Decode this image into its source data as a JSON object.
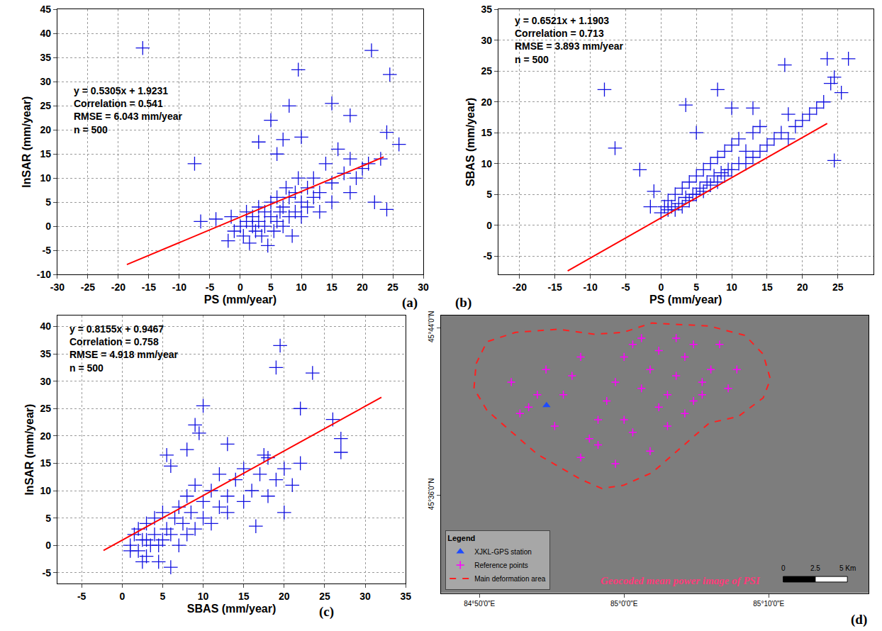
{
  "chart_data": [
    {
      "type": "scatter",
      "panel_label": "(a)",
      "x_label": "PS (mm/year)",
      "y_label": "InSAR (mm/year)",
      "annotation": [
        "y = 0.5305x + 1.9231",
        "Correlation = 0.541",
        "RMSE = 6.043 mm/year",
        "n = 500"
      ],
      "color": "#1010e0",
      "marker": "cross",
      "grid": true,
      "xlim": [
        -30,
        30
      ],
      "xticks": [
        -30,
        -25,
        -20,
        -15,
        -10,
        -5,
        0,
        5,
        10,
        15,
        20,
        25,
        30
      ],
      "ylim": [
        -10,
        45
      ],
      "yticks": [
        -10,
        -5,
        0,
        5,
        10,
        15,
        20,
        25,
        30,
        35,
        40,
        45
      ],
      "x": [
        -16,
        -7.5,
        -6.5,
        -4,
        -2,
        -1.5,
        -1,
        0,
        0.5,
        1,
        1,
        1.5,
        2,
        2,
        2.5,
        3,
        3,
        3.5,
        4,
        4,
        4.5,
        5,
        5,
        5.5,
        6,
        6,
        6.5,
        7,
        7,
        7.5,
        8,
        8,
        8.5,
        9,
        9,
        9.5,
        10,
        10,
        11,
        11,
        12,
        12,
        13,
        13,
        14,
        15,
        15,
        16,
        17,
        18,
        18,
        19,
        20,
        21,
        21.5,
        22,
        23,
        24,
        24,
        24.5,
        26,
        9.5,
        8,
        15,
        5,
        18,
        10,
        7,
        3,
        6
      ],
      "values": [
        37,
        13,
        1,
        1.5,
        -3,
        2,
        -1,
        0,
        -2,
        1,
        3,
        -3.5,
        0,
        2,
        -1,
        1,
        4,
        -2,
        0,
        3,
        -4,
        2,
        5,
        -1,
        1,
        6,
        3,
        0,
        4,
        8,
        2,
        6,
        -2,
        3,
        7,
        10,
        2,
        5,
        4,
        8,
        6,
        10,
        3,
        7,
        13,
        5,
        9,
        16,
        11,
        7,
        14,
        10,
        12,
        13,
        36.5,
        5,
        14,
        19.5,
        3.5,
        31.5,
        17,
        32.5,
        25,
        25.5,
        22,
        23,
        18.5,
        18,
        17.5,
        15
      ],
      "fit": {
        "slope": 0.5305,
        "intercept": 1.9231,
        "x_range": [
          -18.6,
          23.5
        ],
        "color": "#ff0000"
      }
    },
    {
      "type": "scatter",
      "panel_label": "(b)",
      "x_label": "PS (mm/year)",
      "y_label": "SBAS (mm/year)",
      "annotation": [
        "y = 0.6521x + 1.1903",
        "Correlation = 0.713",
        "RMSE = 3.893 mm/year",
        "n = 500"
      ],
      "color": "#1010e0",
      "marker": "cross",
      "grid": true,
      "xlim": [
        -23,
        30
      ],
      "xticks": [
        -20,
        -15,
        -10,
        -5,
        0,
        5,
        10,
        15,
        20,
        25
      ],
      "ylim": [
        -8,
        35
      ],
      "yticks": [
        -5,
        0,
        5,
        10,
        15,
        20,
        25,
        30,
        35
      ],
      "x": [
        -8,
        -6.5,
        -3,
        -1,
        -1.5,
        0,
        0.5,
        1,
        1,
        1.5,
        2,
        2,
        2.5,
        3,
        3,
        3.5,
        4,
        4,
        4.5,
        5,
        5,
        5.5,
        6,
        6,
        6.5,
        7,
        7,
        7.5,
        8,
        8,
        8.5,
        9,
        9,
        9.5,
        10,
        10,
        11,
        11,
        12,
        12,
        13,
        13,
        14,
        14,
        15,
        16,
        17,
        18,
        18,
        19,
        20,
        21,
        22,
        23,
        23.5,
        24,
        24.5,
        24.5,
        25.5,
        26.5,
        17.5,
        3.5,
        8,
        5,
        10,
        13
      ],
      "values": [
        22,
        12.5,
        9,
        5.5,
        3,
        2,
        3,
        2.5,
        4,
        3,
        2.5,
        5,
        3.5,
        3,
        6,
        4.5,
        4,
        7,
        5,
        5,
        8,
        6,
        5.5,
        9,
        7,
        6.5,
        10,
        8,
        7,
        11,
        8.5,
        8,
        12,
        9,
        9,
        13,
        10,
        14,
        10,
        12,
        11,
        15,
        12,
        16,
        13,
        14,
        15,
        14,
        18,
        16,
        17,
        18,
        19,
        20,
        27,
        23,
        24,
        10.5,
        21.5,
        27,
        26,
        19.5,
        22,
        15,
        19,
        19
      ],
      "fit": {
        "slope": 0.6521,
        "intercept": 1.1903,
        "x_range": [
          -13.2,
          23.5
        ],
        "color": "#ff0000"
      }
    },
    {
      "type": "scatter",
      "panel_label": "(c)",
      "x_label": "SBAS (mm/year)",
      "y_label": "InSAR (mm/year)",
      "annotation": [
        "y = 0.8155x + 0.9467",
        "Correlation = 0.758",
        "RMSE = 4.918 mm/year",
        "n = 500"
      ],
      "color": "#1010e0",
      "marker": "cross",
      "grid": true,
      "xlim": [
        -8,
        35
      ],
      "xticks": [
        -5,
        0,
        5,
        10,
        15,
        20,
        25,
        30,
        35
      ],
      "ylim": [
        -7,
        42
      ],
      "yticks": [
        -5,
        0,
        5,
        10,
        15,
        20,
        25,
        30,
        35,
        40
      ],
      "x": [
        1,
        1.5,
        2,
        2,
        2.5,
        3,
        3,
        3.5,
        4,
        4,
        4.5,
        5,
        5,
        5.5,
        6,
        6,
        6.5,
        7,
        7,
        7.5,
        8,
        8,
        8.5,
        9,
        9,
        10,
        10,
        11,
        11,
        12,
        12,
        13,
        13,
        14,
        15,
        15,
        16,
        17,
        18,
        18,
        19,
        20,
        21,
        22,
        1,
        2.5,
        3,
        4.5,
        19.5,
        19,
        23.5,
        10,
        22,
        26,
        27,
        27,
        9,
        9.5,
        8,
        13,
        5.5,
        6,
        17.5,
        20,
        16.5
      ],
      "values": [
        0,
        2,
        -1,
        3,
        1,
        -2,
        4,
        0,
        2,
        5,
        -3,
        1,
        6,
        3,
        -4,
        2,
        5,
        0,
        7,
        4,
        2,
        9,
        6,
        3,
        11,
        5,
        8,
        4,
        10,
        7,
        13,
        6,
        9,
        12,
        8,
        14,
        10,
        13,
        9,
        16,
        12,
        14,
        11,
        15,
        -1,
        -3,
        1,
        0,
        36.5,
        32.5,
        31.5,
        25.5,
        25,
        23,
        19.5,
        17,
        22,
        20.5,
        17.5,
        18.5,
        16.5,
        14.5,
        16.5,
        6,
        3.5
      ],
      "fit": {
        "slope": 0.8155,
        "intercept": 0.9467,
        "x_range": [
          -2.3,
          32
        ],
        "color": "#ff0000"
      }
    },
    {
      "type": "map",
      "panel_label": "(d)",
      "title": "Geocoded mean power image of PSI",
      "color": "#7d7d7d",
      "xlim": [
        84.789,
        85.282
      ],
      "xticks": [
        {
          "value": 84.8333,
          "label": "84°50'0\"E"
        },
        {
          "value": 85.0,
          "label": "85°0'0\"E"
        },
        {
          "value": 85.1667,
          "label": "85°10'0\"E"
        }
      ],
      "ylim": [
        45.522,
        45.743
      ],
      "yticks": [
        {
          "value": 45.6,
          "label": "45°36'0\"N"
        },
        {
          "value": 45.7333,
          "label": "45°44'0\"N"
        }
      ],
      "legend": "lower left",
      "legend_title": "Legend",
      "series": [
        {
          "name": "XJKL-GPS station",
          "type": "scatter",
          "marker": "triangle",
          "color": "#1e4bff",
          "x": [
            84.9106
          ],
          "values": [
            45.6714
          ]
        },
        {
          "name": "Reference points",
          "type": "scatter",
          "marker": "cross",
          "color": "#ff00ff",
          "x": [
            84.87,
            84.89,
            84.91,
            84.93,
            84.95,
            84.97,
            84.99,
            85.01,
            85.03,
            85.05,
            85.07,
            85.09,
            85.11,
            85.13,
            84.88,
            84.9,
            84.92,
            84.94,
            84.96,
            84.98,
            85.0,
            85.02,
            85.04,
            85.06,
            85.08,
            85.1,
            85.12,
            84.95,
            84.97,
            84.99,
            85.01,
            85.03,
            85.05,
            85.07,
            85.09,
            85.0,
            85.02,
            85.04,
            85.06,
            85.08
          ],
          "values": [
            45.69,
            45.67,
            45.7,
            45.68,
            45.71,
            45.66,
            45.69,
            45.72,
            45.7,
            45.68,
            45.71,
            45.69,
            45.72,
            45.7,
            45.665,
            45.68,
            45.655,
            45.695,
            45.645,
            45.675,
            45.66,
            45.685,
            45.67,
            45.695,
            45.675,
            45.7,
            45.685,
            45.63,
            45.64,
            45.625,
            45.65,
            45.635,
            45.655,
            45.665,
            45.68,
            45.71,
            45.725,
            45.715,
            45.725,
            45.72
          ]
        },
        {
          "name": "Main deformation area",
          "type": "line",
          "line_style": "dash",
          "color": "#ff2020",
          "x": [
            84.8295,
            84.8419,
            84.875,
            84.9246,
            84.966,
            84.999,
            85.0321,
            85.0983,
            85.1396,
            85.1603,
            85.1686,
            85.1603,
            85.1314,
            85.0983,
            85.0652,
            85.0321,
            84.999,
            84.9743,
            84.9494,
            84.9246,
            84.8998,
            84.8667,
            84.8419,
            84.827,
            84.8295
          ],
          "values": [
            45.7047,
            45.7221,
            45.7296,
            45.7321,
            45.7281,
            45.7296,
            45.737,
            45.7346,
            45.7271,
            45.7122,
            45.6923,
            45.6774,
            45.6625,
            45.6575,
            45.6376,
            45.6178,
            45.6078,
            45.6053,
            45.6128,
            45.6227,
            45.6327,
            45.6525,
            45.6675,
            45.6849,
            45.7047
          ]
        }
      ],
      "scale_bar": {
        "ticks": [
          {
            "value": 0,
            "label": "0"
          },
          {
            "value": 2.5,
            "label": "2.5"
          },
          {
            "value": 5,
            "label": "5 Km"
          }
        ]
      }
    }
  ]
}
